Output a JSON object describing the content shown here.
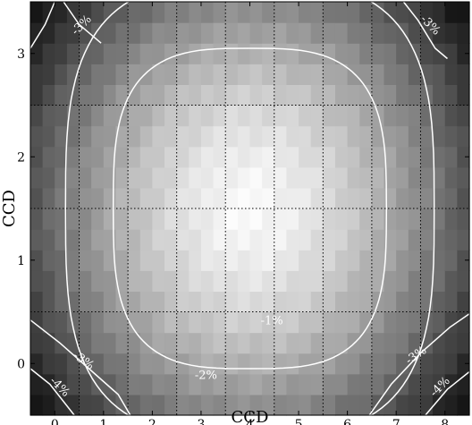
{
  "chart_data": {
    "type": "heatmap",
    "title": "",
    "xlabel": "CCD",
    "ylabel": "CCD",
    "xlim": [
      -0.5,
      8.5
    ],
    "ylim": [
      -0.5,
      3.5
    ],
    "x_ticks": [
      "0",
      "1",
      "2",
      "3",
      "4",
      "5",
      "6",
      "7",
      "8"
    ],
    "y_ticks": [
      "0",
      "1",
      "2",
      "3"
    ],
    "colormap": "grayscale (dark = low, light = high)",
    "peak_center": {
      "x": 4.0,
      "y": 1.5
    },
    "ccd_boundaries": {
      "x": [
        0.5,
        1.5,
        2.5,
        3.5,
        4.5,
        5.5,
        6.5,
        7.5
      ],
      "y": [
        0.5,
        1.5,
        2.5
      ]
    },
    "grid": "dotted",
    "contours": [
      {
        "level": "-1%",
        "semi_axes": [
          2.8,
          1.55
        ],
        "label_at": {
          "x": 4.45,
          "y": 0.38
        }
      },
      {
        "level": "-2%",
        "semi_axes": [
          3.78,
          2.2
        ],
        "label_at": {
          "x": 3.1,
          "y": -0.15
        }
      },
      {
        "level": "-3%",
        "corners": true,
        "labels_at": [
          {
            "x": 0.6,
            "y": 3.25,
            "angle": -45
          },
          {
            "x": 7.65,
            "y": 3.25,
            "angle": 45
          },
          {
            "x": 0.55,
            "y": 0.0,
            "angle": 35
          },
          {
            "x": 7.45,
            "y": 0.05,
            "angle": -35
          }
        ]
      },
      {
        "level": "-4%",
        "corners": "bottom",
        "labels_at": [
          {
            "x": 0.05,
            "y": -0.25,
            "angle": 45
          },
          {
            "x": 7.95,
            "y": -0.25,
            "angle": -45
          }
        ]
      }
    ]
  }
}
